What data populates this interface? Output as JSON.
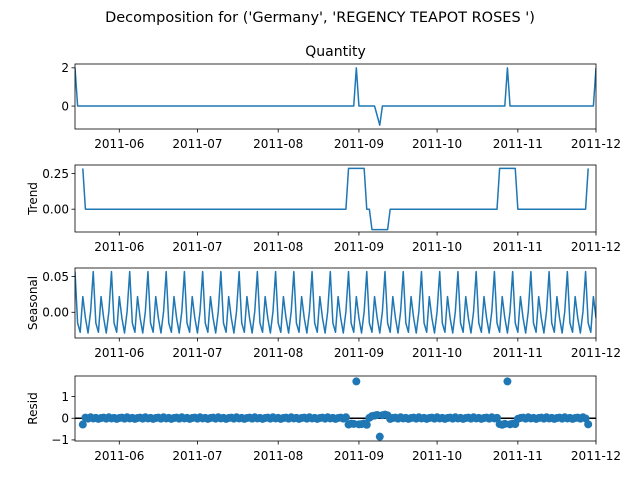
{
  "suptitle": "Decomposition for ('Germany', 'REGENCY TEAPOT ROSES ')",
  "line_color": "#1f77b4",
  "x_tick_labels": [
    "2011-06",
    "2011-07",
    "2011-08",
    "2011-09",
    "2011-10",
    "2011-11",
    "2011-12"
  ],
  "chart_data": [
    {
      "type": "line",
      "title": "Quantity",
      "ylabel": "",
      "xlim": [
        "2011-05-15",
        "2011-12-01"
      ],
      "ylim": [
        -1.2,
        2.2
      ],
      "y_ticks": [
        0,
        2
      ],
      "y_tick_labels": [
        "0",
        "2"
      ],
      "points": [
        [
          "2011-05-15",
          2
        ],
        [
          "2011-05-16",
          0
        ],
        [
          "2011-08-30",
          0
        ],
        [
          "2011-08-31",
          2
        ],
        [
          "2011-09-01",
          0
        ],
        [
          "2011-09-07",
          0
        ],
        [
          "2011-09-08",
          -0.5
        ],
        [
          "2011-09-09",
          -1
        ],
        [
          "2011-09-10",
          0
        ],
        [
          "2011-10-27",
          0
        ],
        [
          "2011-10-28",
          2
        ],
        [
          "2011-10-29",
          0
        ],
        [
          "2011-11-30",
          0
        ],
        [
          "2011-12-01",
          2
        ]
      ]
    },
    {
      "type": "line",
      "title": "",
      "ylabel": "Trend",
      "xlim": [
        "2011-05-15",
        "2011-12-01"
      ],
      "ylim": [
        -0.16,
        0.31
      ],
      "y_ticks": [
        0,
        0.25
      ],
      "y_tick_labels": [
        "0.00",
        "0.25"
      ],
      "points": [
        [
          "2011-05-18",
          0.286
        ],
        [
          "2011-05-19",
          0
        ],
        [
          "2011-08-27",
          0
        ],
        [
          "2011-08-28",
          0.286
        ],
        [
          "2011-09-03",
          0.286
        ],
        [
          "2011-09-04",
          0
        ],
        [
          "2011-09-05",
          0
        ],
        [
          "2011-09-06",
          -0.143
        ],
        [
          "2011-09-12",
          -0.143
        ],
        [
          "2011-09-13",
          0
        ],
        [
          "2011-10-24",
          0
        ],
        [
          "2011-10-25",
          0.286
        ],
        [
          "2011-10-31",
          0.286
        ],
        [
          "2011-11-01",
          0
        ],
        [
          "2011-11-27",
          0
        ],
        [
          "2011-11-28",
          0.286
        ]
      ]
    },
    {
      "type": "line",
      "title": "",
      "ylabel": "Seasonal",
      "xlim": [
        "2011-05-15",
        "2011-12-01"
      ],
      "ylim": [
        -0.036,
        0.062
      ],
      "y_ticks": [
        0,
        0.05
      ],
      "y_tick_labels": [
        "0.00",
        "0.05"
      ],
      "start": "2011-05-15",
      "period_days": 7,
      "weekly_pattern": [
        0.057,
        -0.015,
        -0.028,
        0.022,
        -0.008,
        -0.029,
        0.001
      ]
    },
    {
      "type": "scatter",
      "title": "",
      "ylabel": "Resid",
      "xlim": [
        "2011-05-15",
        "2011-12-01"
      ],
      "ylim": [
        -1.05,
        1.95
      ],
      "y_ticks": [
        -1,
        0,
        1
      ],
      "y_tick_labels": [
        "−1",
        "0",
        "1"
      ],
      "baseline": 0,
      "start": "2011-05-18",
      "end": "2011-11-28",
      "outliers": [
        [
          "2011-05-18",
          -0.29
        ],
        [
          "2011-08-28",
          -0.29
        ],
        [
          "2011-08-29",
          -0.25
        ],
        [
          "2011-08-30",
          -0.26
        ],
        [
          "2011-08-31",
          1.7
        ],
        [
          "2011-09-01",
          -0.28
        ],
        [
          "2011-09-02",
          -0.27
        ],
        [
          "2011-09-03",
          -0.24
        ],
        [
          "2011-09-04",
          -0.3
        ],
        [
          "2011-09-06",
          0.1
        ],
        [
          "2011-09-07",
          0.12
        ],
        [
          "2011-09-08",
          0.15
        ],
        [
          "2011-09-09",
          -0.85
        ],
        [
          "2011-09-10",
          0.14
        ],
        [
          "2011-09-11",
          0.17
        ],
        [
          "2011-09-12",
          0.13
        ],
        [
          "2011-10-25",
          -0.27
        ],
        [
          "2011-10-26",
          -0.3
        ],
        [
          "2011-10-27",
          -0.26
        ],
        [
          "2011-10-28",
          1.7
        ],
        [
          "2011-10-29",
          -0.28
        ],
        [
          "2011-10-30",
          -0.25
        ],
        [
          "2011-10-31",
          -0.27
        ],
        [
          "2011-11-28",
          -0.28
        ]
      ]
    }
  ]
}
